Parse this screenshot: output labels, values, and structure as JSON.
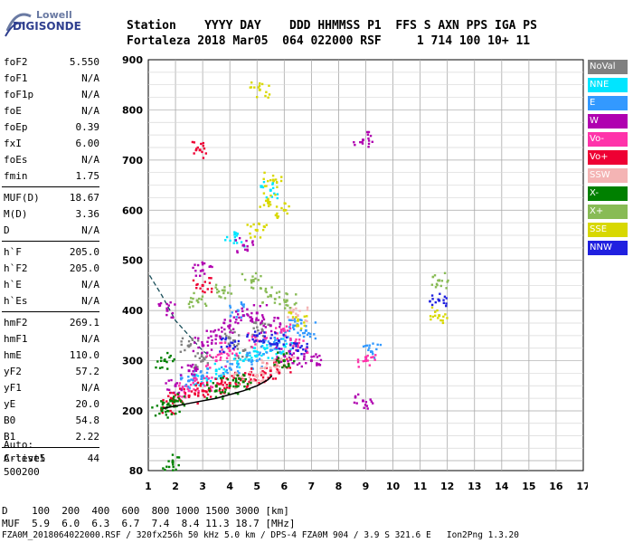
{
  "logo": {
    "line1": "Lowell",
    "line2": "DIGISONDE"
  },
  "header": {
    "line1": "Station    YYYY DAY    DDD HHMMSS P1  FFS S AXN PPS IGA PS",
    "line2": "Fortaleza 2018 Mar05  064 022000 RSF     1 714 100 10+ 11"
  },
  "params": {
    "group1": [
      {
        "label": "foF2",
        "value": "5.550"
      },
      {
        "label": "foF1",
        "value": "N/A"
      },
      {
        "label": "foF1p",
        "value": "N/A"
      },
      {
        "label": "foE",
        "value": "N/A"
      },
      {
        "label": "foEp",
        "value": "0.39"
      },
      {
        "label": "fxI",
        "value": "6.00"
      },
      {
        "label": "foEs",
        "value": "N/A"
      },
      {
        "label": "fmin",
        "value": "1.75"
      }
    ],
    "group2": [
      {
        "label": "MUF(D)",
        "value": "18.67"
      },
      {
        "label": "M(D)",
        "value": "3.36"
      },
      {
        "label": "D",
        "value": "N/A"
      }
    ],
    "group3": [
      {
        "label": "h`F",
        "value": "205.0"
      },
      {
        "label": "h`F2",
        "value": "205.0"
      },
      {
        "label": "h`E",
        "value": "N/A"
      },
      {
        "label": "h`Es",
        "value": "N/A"
      }
    ],
    "group4": [
      {
        "label": "hmF2",
        "value": "269.1"
      },
      {
        "label": "hmF1",
        "value": "N/A"
      },
      {
        "label": "hmE",
        "value": "110.0"
      },
      {
        "label": "yF2",
        "value": "57.2"
      },
      {
        "label": "yF1",
        "value": "N/A"
      },
      {
        "label": "yE",
        "value": "20.0"
      },
      {
        "label": "B0",
        "value": "54.8"
      },
      {
        "label": "B1",
        "value": "2.22"
      }
    ],
    "group5": [
      {
        "label": "C-level",
        "value": "44"
      }
    ]
  },
  "auto": {
    "line1": "Auto:",
    "line2": "Artist5",
    "line3": "500200"
  },
  "dmuf": {
    "line1": "D    100  200  400  600  800 1000 1500 3000 [km]",
    "line2": "MUF  5.9  6.0  6.3  6.7  7.4  8.4 11.3 18.7 [MHz]"
  },
  "footer": "FZA0M_2018064022000.RSF / 320fx256h 50 kHz 5.0 km / DPS-4 FZA0M 904 / 3.9 S 321.6 E   Ion2Png 1.3.20",
  "legend": [
    {
      "label": "NoVal",
      "color": "#808080",
      "text_color": "#ffffff"
    },
    {
      "label": "NNE",
      "color": "#00e5ff",
      "text_color": "#ffffff"
    },
    {
      "label": "E",
      "color": "#3399ff",
      "text_color": "#ffffff"
    },
    {
      "label": "W",
      "color": "#b000b0",
      "text_color": "#ffffff"
    },
    {
      "label": "Vo-",
      "color": "#ff33aa",
      "text_color": "#ffffff"
    },
    {
      "label": "Vo+",
      "color": "#ee0033",
      "text_color": "#ffffff"
    },
    {
      "label": "SSW",
      "color": "#f4b4b4",
      "text_color": "#ffffff"
    },
    {
      "label": "X-",
      "color": "#008000",
      "text_color": "#ffffff"
    },
    {
      "label": "X+",
      "color": "#88bb55",
      "text_color": "#ffffff"
    },
    {
      "label": "SSE",
      "color": "#d8d800",
      "text_color": "#ffffff"
    },
    {
      "label": "NNW",
      "color": "#2020e0",
      "text_color": "#ffffff"
    }
  ],
  "chart_data": {
    "type": "scatter",
    "xlim": [
      1,
      17
    ],
    "ylim": [
      80,
      900
    ],
    "x_ticks": [
      "1",
      "2",
      "3",
      "4",
      "5",
      "6",
      "7",
      "8",
      "9",
      "10",
      "11",
      "12",
      "13",
      "14",
      "15",
      "16",
      "17"
    ],
    "y_ticks": [
      "80",
      "200",
      "300",
      "400",
      "500",
      "600",
      "700",
      "800",
      "900"
    ],
    "grid": true,
    "legend_position": "right",
    "series": [
      {
        "name": "NoVal",
        "color": "#808080",
        "points": [
          [
            2.5,
            330
          ],
          [
            3.0,
            300
          ],
          [
            4.0,
            345
          ],
          [
            4.5,
            320
          ],
          [
            5.2,
            360
          ]
        ]
      },
      {
        "name": "NNE",
        "color": "#00e5ff",
        "points": [
          [
            3.0,
            265
          ],
          [
            3.5,
            280
          ],
          [
            4.5,
            300
          ],
          [
            5.0,
            310
          ],
          [
            5.5,
            320
          ],
          [
            6.0,
            330
          ],
          [
            4.2,
            540
          ],
          [
            5.5,
            640
          ]
        ]
      },
      {
        "name": "E",
        "color": "#3399ff",
        "points": [
          [
            2.5,
            260
          ],
          [
            3.0,
            270
          ],
          [
            4.0,
            285
          ],
          [
            5.0,
            300
          ],
          [
            5.5,
            330
          ],
          [
            6.0,
            350
          ],
          [
            6.5,
            370
          ],
          [
            6.8,
            360
          ],
          [
            4.3,
            400
          ],
          [
            9.2,
            318
          ]
        ]
      },
      {
        "name": "W",
        "color": "#b000b0",
        "points": [
          [
            2.0,
            250
          ],
          [
            2.5,
            280
          ],
          [
            3.0,
            330
          ],
          [
            3.5,
            350
          ],
          [
            4.0,
            370
          ],
          [
            4.5,
            390
          ],
          [
            5.0,
            395
          ],
          [
            5.5,
            370
          ],
          [
            6.0,
            310
          ],
          [
            6.5,
            305
          ],
          [
            7.0,
            300
          ],
          [
            3.0,
            480
          ],
          [
            4.5,
            530
          ],
          [
            1.7,
            400
          ],
          [
            8.9,
            740
          ],
          [
            8.9,
            220
          ]
        ]
      },
      {
        "name": "Vo-",
        "color": "#ff33aa",
        "points": [
          [
            2.5,
            240
          ],
          [
            3.0,
            255
          ],
          [
            3.5,
            300
          ],
          [
            4.0,
            320
          ],
          [
            5.0,
            340
          ],
          [
            6.0,
            360
          ],
          [
            6.5,
            330
          ],
          [
            9.0,
            300
          ]
        ]
      },
      {
        "name": "Vo+",
        "color": "#ee0033",
        "points": [
          [
            1.8,
            210
          ],
          [
            2.0,
            220
          ],
          [
            2.5,
            230
          ],
          [
            3.0,
            240
          ],
          [
            3.5,
            250
          ],
          [
            4.0,
            255
          ],
          [
            4.5,
            262
          ],
          [
            5.0,
            270
          ],
          [
            5.5,
            280
          ],
          [
            6.0,
            290
          ],
          [
            3.0,
            450
          ],
          [
            2.9,
            720
          ]
        ]
      },
      {
        "name": "SSW",
        "color": "#f4b4b4",
        "points": [
          [
            4.5,
            260
          ],
          [
            5.0,
            270
          ],
          [
            5.5,
            285
          ],
          [
            6.0,
            300
          ],
          [
            6.5,
            390
          ]
        ]
      },
      {
        "name": "X-",
        "color": "#008000",
        "points": [
          [
            1.5,
            200
          ],
          [
            1.8,
            210
          ],
          [
            2.0,
            220
          ],
          [
            3.5,
            240
          ],
          [
            4.0,
            250
          ],
          [
            4.5,
            258
          ],
          [
            6.0,
            300
          ],
          [
            1.9,
            97
          ],
          [
            1.6,
            300
          ]
        ]
      },
      {
        "name": "X+",
        "color": "#88bb55",
        "points": [
          [
            2.8,
            420
          ],
          [
            3.8,
            440
          ],
          [
            4.8,
            460
          ],
          [
            5.5,
            430
          ],
          [
            6.1,
            420
          ],
          [
            11.7,
            460
          ]
        ]
      },
      {
        "name": "SSE",
        "color": "#d8d800",
        "points": [
          [
            5.0,
            560
          ],
          [
            5.4,
            620
          ],
          [
            5.6,
            660
          ],
          [
            6.0,
            600
          ],
          [
            6.5,
            380
          ],
          [
            5.1,
            840
          ],
          [
            11.7,
            390
          ]
        ]
      },
      {
        "name": "NNW",
        "color": "#2020e0",
        "points": [
          [
            4.0,
            330
          ],
          [
            5.0,
            350
          ],
          [
            5.8,
            340
          ],
          [
            6.5,
            320
          ],
          [
            11.7,
            420
          ]
        ]
      }
    ],
    "profile_curve": [
      [
        1.55,
        205
      ],
      [
        2.5,
        215
      ],
      [
        3.5,
        225
      ],
      [
        4.5,
        240
      ],
      [
        5.0,
        250
      ],
      [
        5.4,
        262
      ],
      [
        5.55,
        270
      ]
    ],
    "dashed_curve": [
      [
        1.05,
        470
      ],
      [
        1.5,
        430
      ],
      [
        2.0,
        380
      ],
      [
        2.5,
        350
      ],
      [
        3.0,
        320
      ],
      [
        3.5,
        300
      ]
    ]
  }
}
